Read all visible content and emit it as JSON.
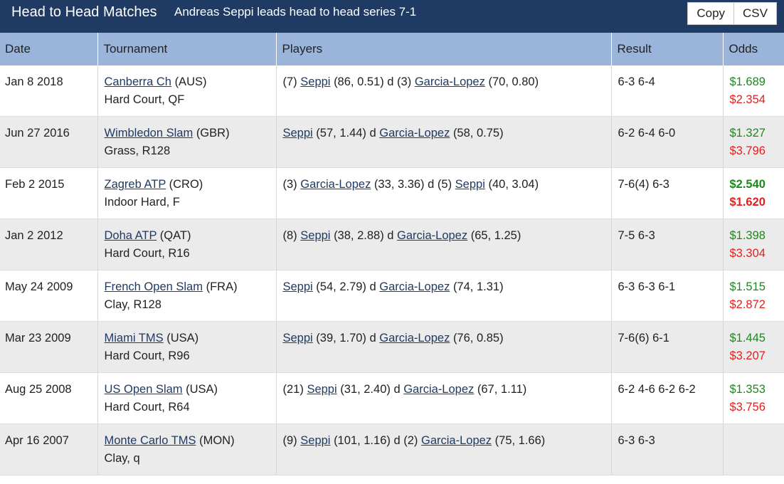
{
  "header": {
    "title": "Head to Head Matches",
    "subtitle": "Andreas Seppi leads head to head series 7-1",
    "copy_label": "Copy",
    "csv_label": "CSV"
  },
  "columns": [
    "Date",
    "Tournament",
    "Players",
    "Result",
    "Odds"
  ],
  "rows": [
    {
      "date": "Jan 8 2018",
      "tournament": "Canberra Ch",
      "country": "(AUS)",
      "surface": "Hard Court, QF",
      "w_seed": "(7)",
      "winner": "Seppi",
      "w_stats": "(86, 0.51)",
      "l_seed": "(3)",
      "loser": "Garcia-Lopez",
      "l_stats": "(70, 0.80)",
      "result": "6-3 6-4",
      "odds1": "$1.689",
      "odds1_color": "#1a8a1a",
      "odds2": "$2.354",
      "odds2_color": "#e01f1f",
      "bold": false
    },
    {
      "date": "Jun 27 2016",
      "tournament": "Wimbledon Slam",
      "country": "(GBR)",
      "surface": "Grass, R128",
      "w_seed": "",
      "winner": "Seppi",
      "w_stats": "(57, 1.44)",
      "l_seed": "",
      "loser": "Garcia-Lopez",
      "l_stats": "(58, 0.75)",
      "result": "6-2 6-4 6-0",
      "odds1": "$1.327",
      "odds1_color": "#1a8a1a",
      "odds2": "$3.796",
      "odds2_color": "#e01f1f",
      "bold": false
    },
    {
      "date": "Feb 2 2015",
      "tournament": "Zagreb ATP",
      "country": "(CRO)",
      "surface": "Indoor Hard, F",
      "w_seed": "(3)",
      "winner": "Garcia-Lopez",
      "w_stats": "(33, 3.36)",
      "l_seed": "(5)",
      "loser": "Seppi",
      "l_stats": "(40, 3.04)",
      "result": "7-6(4) 6-3",
      "odds1": "$2.540",
      "odds1_color": "#1a8a1a",
      "odds2": "$1.620",
      "odds2_color": "#e01f1f",
      "bold": true
    },
    {
      "date": "Jan 2 2012",
      "tournament": "Doha ATP",
      "country": "(QAT)",
      "surface": "Hard Court, R16",
      "w_seed": "(8)",
      "winner": "Seppi",
      "w_stats": "(38, 2.88)",
      "l_seed": "",
      "loser": "Garcia-Lopez",
      "l_stats": "(65, 1.25)",
      "result": "7-5 6-3",
      "odds1": "$1.398",
      "odds1_color": "#1a8a1a",
      "odds2": "$3.304",
      "odds2_color": "#e01f1f",
      "bold": false
    },
    {
      "date": "May 24 2009",
      "tournament": "French Open Slam",
      "country": "(FRA)",
      "surface": "Clay, R128",
      "w_seed": "",
      "winner": "Seppi",
      "w_stats": "(54, 2.79)",
      "l_seed": "",
      "loser": "Garcia-Lopez",
      "l_stats": "(74, 1.31)",
      "result": "6-3 6-3 6-1",
      "odds1": "$1.515",
      "odds1_color": "#1a8a1a",
      "odds2": "$2.872",
      "odds2_color": "#e01f1f",
      "bold": false
    },
    {
      "date": "Mar 23 2009",
      "tournament": "Miami TMS",
      "country": "(USA)",
      "surface": "Hard Court, R96",
      "w_seed": "",
      "winner": "Seppi",
      "w_stats": "(39, 1.70)",
      "l_seed": "",
      "loser": "Garcia-Lopez",
      "l_stats": "(76, 0.85)",
      "result": "7-6(6) 6-1",
      "odds1": "$1.445",
      "odds1_color": "#1a8a1a",
      "odds2": "$3.207",
      "odds2_color": "#e01f1f",
      "bold": false
    },
    {
      "date": "Aug 25 2008",
      "tournament": "US Open Slam",
      "country": "(USA)",
      "surface": "Hard Court, R64",
      "w_seed": "(21)",
      "winner": "Seppi",
      "w_stats": "(31, 2.40)",
      "l_seed": "",
      "loser": "Garcia-Lopez",
      "l_stats": "(67, 1.11)",
      "result": "6-2 4-6 6-2 6-2",
      "odds1": "$1.353",
      "odds1_color": "#1a8a1a",
      "odds2": "$3.756",
      "odds2_color": "#e01f1f",
      "bold": false
    },
    {
      "date": "Apr 16 2007",
      "tournament": "Monte Carlo TMS",
      "country": "(MON)",
      "surface": "Clay, q",
      "w_seed": "(9)",
      "winner": "Seppi",
      "w_stats": "(101, 1.16)",
      "l_seed": "(2)",
      "loser": "Garcia-Lopez",
      "l_stats": "(75, 1.66)",
      "result": "6-3 6-3",
      "odds1": "",
      "odds1_color": "#1a8a1a",
      "odds2": "",
      "odds2_color": "#e01f1f",
      "bold": false
    }
  ]
}
